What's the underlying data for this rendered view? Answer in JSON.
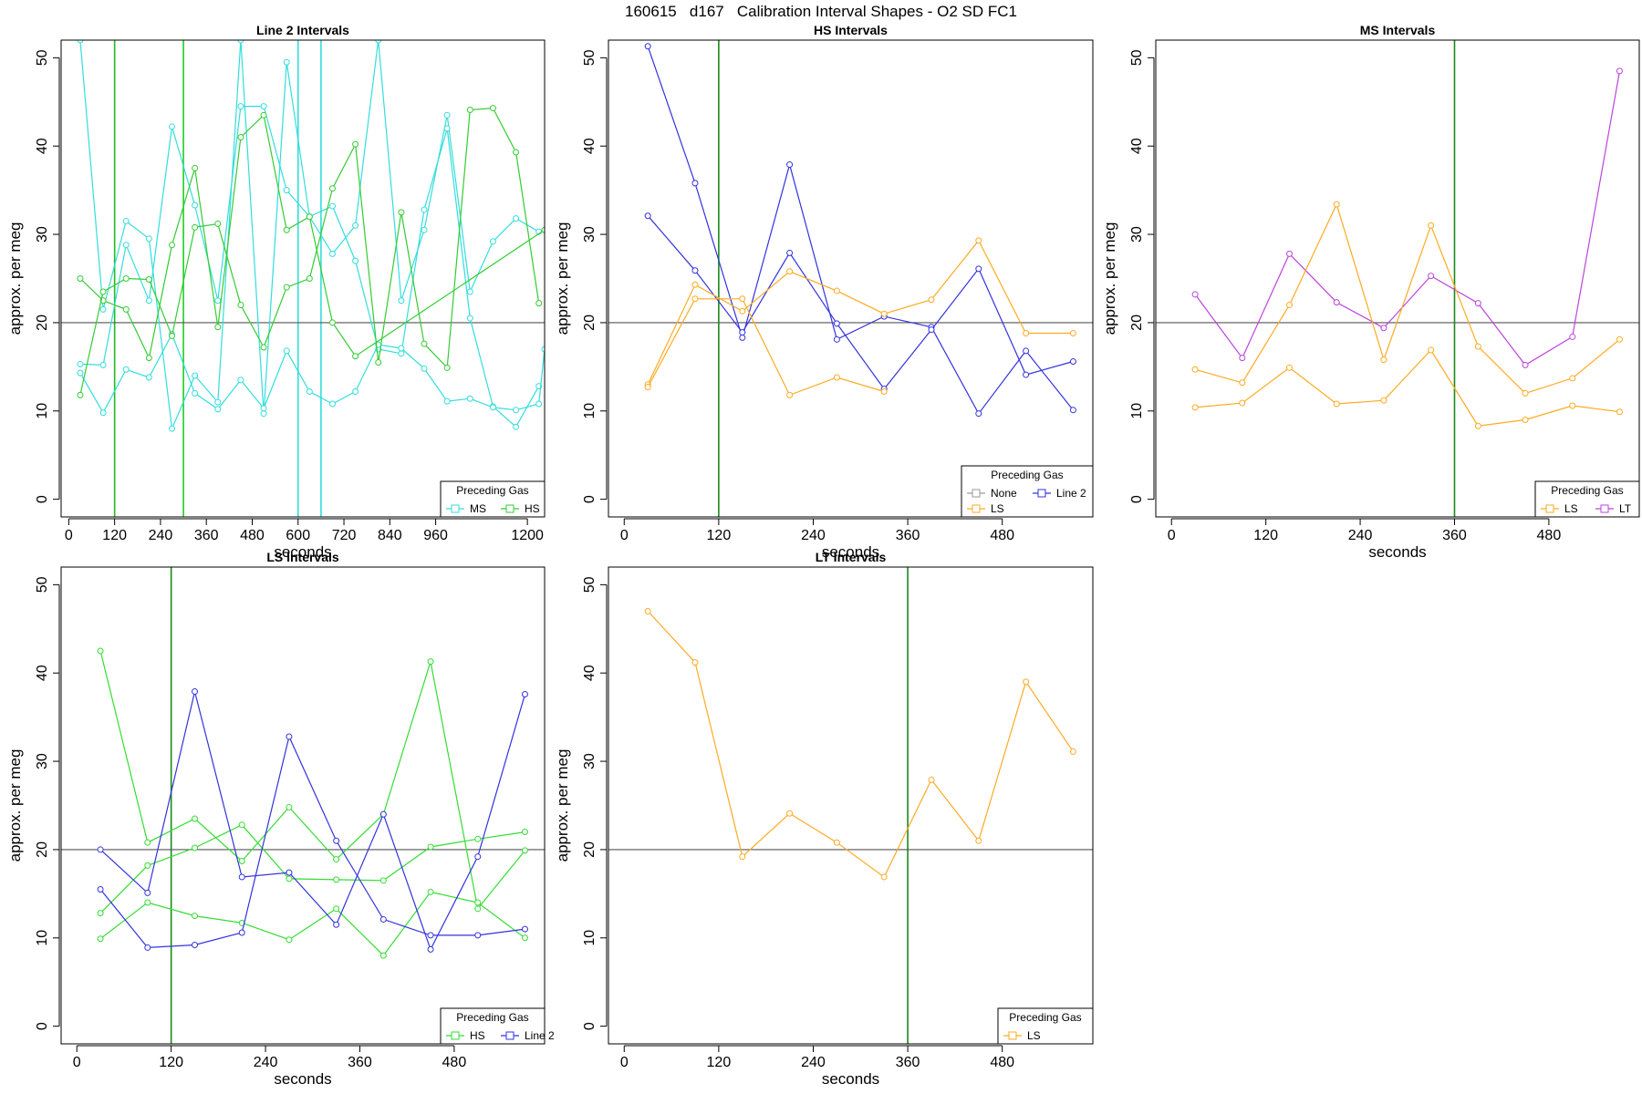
{
  "title": "160615   d167   Calibration Interval Shapes - O2 SD FC1",
  "chart_data": [
    {
      "type": "line",
      "title": "Line 2 Intervals",
      "xlabel": "seconds",
      "ylabel": "approx. per meg",
      "xlim": [
        -20,
        1245
      ],
      "ylim": [
        -2,
        52
      ],
      "xticks": [
        0,
        120,
        240,
        360,
        480,
        600,
        720,
        840,
        960,
        1200
      ],
      "yticks": [
        0,
        10,
        20,
        30,
        40,
        50
      ],
      "hline": 20,
      "vlines": [
        {
          "x": 120,
          "color": "#22bb22"
        },
        {
          "x": 300,
          "color": "#22cc22"
        },
        {
          "x": 600,
          "color": "#33dddd"
        },
        {
          "x": 660,
          "color": "#33dddd"
        }
      ],
      "legend": {
        "title": "Preceding Gas",
        "placement": "bottom-right",
        "entries": [
          {
            "label": "MS",
            "color": "#33dddd"
          },
          {
            "label": "HS",
            "color": "#33cc33"
          }
        ]
      },
      "series": [
        {
          "color": "#33dddd",
          "x": [
            30,
            90,
            150,
            210,
            270,
            330,
            390,
            450,
            510,
            570,
            630,
            690,
            750,
            810,
            870,
            930,
            990,
            1050,
            1110,
            1170,
            1230
          ],
          "y": [
            52,
            21.5,
            31.5,
            29.5,
            8,
            14,
            11,
            52,
            9.7,
            49.5,
            32,
            27.8,
            31,
            52,
            22.5,
            30.5,
            43.5,
            23.5,
            29.2,
            31.8,
            30.3
          ]
        },
        {
          "color": "#33dddd",
          "x": [
            30,
            90,
            150,
            210,
            270,
            330,
            390,
            450,
            510,
            570,
            630,
            690,
            750,
            810,
            870,
            930,
            990,
            1050,
            1110,
            1170,
            1230
          ],
          "y": [
            15.3,
            15.2,
            28.8,
            22.5,
            42.2,
            33.3,
            22.5,
            44.5,
            44.5,
            35,
            32,
            33.2,
            27,
            17,
            16.5,
            32.8,
            42,
            20.5,
            10.5,
            8.2,
            12.8
          ]
        },
        {
          "color": "#33dddd",
          "x": [
            30,
            90,
            150,
            210,
            270,
            330,
            390,
            450,
            510,
            570,
            630,
            690,
            750,
            810,
            870,
            930,
            990,
            1050,
            1110,
            1170,
            1230,
            1245
          ],
          "y": [
            14.3,
            9.8,
            14.7,
            13.8,
            18.7,
            12,
            10.2,
            13.5,
            10.3,
            16.8,
            12.2,
            10.8,
            12.2,
            17.5,
            17.1,
            14.8,
            11.1,
            11.4,
            10.4,
            10.1,
            10.8,
            17
          ]
        },
        {
          "color": "#33cc33",
          "x": [
            30,
            90,
            150,
            210,
            270,
            330,
            390,
            450,
            510,
            570,
            630,
            690,
            750,
            1245
          ],
          "y": [
            25,
            22.5,
            21.5,
            16,
            28.8,
            37.5,
            19.5,
            41,
            43.5,
            30.5,
            32,
            20,
            16.2,
            30.5
          ]
        },
        {
          "color": "#33cc33",
          "x": [
            30,
            90,
            150,
            210,
            270,
            330,
            390,
            450,
            510,
            570,
            630,
            690,
            750,
            810,
            870,
            930,
            990,
            1050,
            1110,
            1170,
            1230
          ],
          "y": [
            11.8,
            23.5,
            25,
            24.9,
            18.5,
            30.8,
            31.2,
            22,
            17.2,
            24,
            25,
            35.2,
            40.2,
            15.5,
            32.5,
            17.6,
            14.9,
            44.1,
            44.3,
            39.3,
            22.2
          ]
        }
      ]
    },
    {
      "type": "line",
      "title": "HS Intervals",
      "xlabel": "seconds",
      "ylabel": "approx. per meg",
      "xlim": [
        -20,
        595
      ],
      "ylim": [
        -2,
        52
      ],
      "xticks": [
        0,
        120,
        240,
        360,
        480
      ],
      "yticks": [
        0,
        10,
        20,
        30,
        40,
        50
      ],
      "hline": 20,
      "vlines": [
        {
          "x": 120,
          "color": "#1a8a1a"
        }
      ],
      "legend": {
        "title": "Preceding Gas",
        "placement": "bottom-right",
        "entries": [
          {
            "label": "None",
            "color": "#999999"
          },
          {
            "label": "Line 2",
            "color": "#3333dd"
          },
          {
            "label": "LS",
            "color": "#ffaa22"
          }
        ]
      },
      "series": [
        {
          "color": "#3333dd",
          "x": [
            30,
            90,
            150,
            210,
            270,
            330,
            390,
            450,
            510,
            570
          ],
          "y": [
            51.3,
            35.8,
            18.3,
            37.9,
            18.1,
            20.7,
            19.5,
            9.7,
            16.8,
            10.1
          ]
        },
        {
          "color": "#3333dd",
          "x": [
            30,
            90,
            150,
            210,
            270,
            330,
            390,
            450,
            510,
            570
          ],
          "y": [
            32.1,
            25.9,
            18.9,
            27.9,
            19.9,
            12.5,
            19.2,
            26.1,
            14.1,
            15.6
          ]
        },
        {
          "color": "#ffaa22",
          "x": [
            30,
            90,
            150,
            210,
            270,
            330,
            390,
            450,
            510,
            570
          ],
          "y": [
            13,
            24.3,
            21.3,
            25.8,
            23.6,
            21,
            22.6,
            29.3,
            18.8,
            18.8
          ]
        },
        {
          "color": "#ffaa22",
          "x": [
            30,
            90,
            150,
            210,
            270,
            330
          ],
          "y": [
            12.7,
            22.7,
            22.7,
            11.8,
            13.8,
            12.2
          ]
        }
      ]
    },
    {
      "type": "line",
      "title": "MS Intervals",
      "xlabel": "seconds",
      "ylabel": "approx. per meg",
      "xlim": [
        -20,
        595
      ],
      "ylim": [
        -2,
        52
      ],
      "xticks": [
        0,
        120,
        240,
        360,
        480
      ],
      "yticks": [
        0,
        10,
        20,
        30,
        40,
        50
      ],
      "hline": 20,
      "vlines": [
        {
          "x": 360,
          "color": "#1a8a1a"
        }
      ],
      "legend": {
        "title": "Preceding Gas",
        "placement": "bottom-right",
        "entries": [
          {
            "label": "LS",
            "color": "#ffaa22"
          },
          {
            "label": "LT",
            "color": "#bb44dd"
          }
        ]
      },
      "series": [
        {
          "color": "#bb44dd",
          "x": [
            30,
            90,
            150,
            210,
            270,
            330,
            390,
            450,
            510,
            570
          ],
          "y": [
            23.2,
            16,
            27.8,
            22.3,
            19.4,
            25.3,
            22.2,
            15.2,
            18.4,
            48.5
          ]
        },
        {
          "color": "#ffaa22",
          "x": [
            30,
            90,
            150,
            210,
            270,
            330,
            390,
            450,
            510,
            570
          ],
          "y": [
            14.7,
            13.2,
            22,
            33.4,
            15.8,
            31,
            17.3,
            12,
            13.7,
            18.1
          ]
        },
        {
          "color": "#ffaa22",
          "x": [
            30,
            90,
            150,
            210,
            270,
            330,
            390,
            450,
            510,
            570
          ],
          "y": [
            10.4,
            10.9,
            14.9,
            10.8,
            11.2,
            16.9,
            8.3,
            9,
            10.6,
            9.9
          ]
        }
      ]
    },
    {
      "type": "line",
      "title": "LS Intervals",
      "xlabel": "seconds",
      "ylabel": "approx. per meg",
      "xlim": [
        -20,
        595
      ],
      "ylim": [
        -2,
        52
      ],
      "xticks": [
        0,
        120,
        240,
        360,
        480
      ],
      "yticks": [
        0,
        10,
        20,
        30,
        40,
        50
      ],
      "hline": 20,
      "vlines": [
        {
          "x": 120,
          "color": "#1a8a1a"
        }
      ],
      "legend": {
        "title": "Preceding Gas",
        "placement": "bottom-right",
        "entries": [
          {
            "label": "HS",
            "color": "#33dd33"
          },
          {
            "label": "Line 2",
            "color": "#3333dd"
          }
        ]
      },
      "series": [
        {
          "color": "#33dd33",
          "x": [
            30,
            90,
            150,
            210,
            270,
            330,
            390,
            450,
            510,
            570
          ],
          "y": [
            42.5,
            20.8,
            23.5,
            18.7,
            24.8,
            18.9,
            24,
            41.3,
            13.3,
            19.9
          ]
        },
        {
          "color": "#33dd33",
          "x": [
            30,
            90,
            150,
            210,
            270,
            330,
            390,
            450,
            510,
            570
          ],
          "y": [
            12.8,
            18.2,
            20.2,
            22.8,
            16.7,
            16.6,
            16.5,
            20.3,
            21.2,
            22
          ]
        },
        {
          "color": "#33dd33",
          "x": [
            30,
            90,
            150,
            210,
            270,
            330,
            390,
            450,
            510,
            570
          ],
          "y": [
            9.9,
            14,
            12.5,
            11.7,
            9.8,
            13.3,
            8,
            15.2,
            14,
            10
          ]
        },
        {
          "color": "#3333dd",
          "x": [
            30,
            90,
            150,
            210,
            270,
            330,
            390,
            450,
            510,
            570
          ],
          "y": [
            20,
            15.1,
            37.9,
            16.9,
            17.4,
            11.5,
            24,
            8.7,
            19.2,
            37.6
          ]
        },
        {
          "color": "#3333dd",
          "x": [
            30,
            90,
            150,
            210,
            270,
            330,
            390,
            450,
            510,
            570
          ],
          "y": [
            15.5,
            8.9,
            9.2,
            10.6,
            32.8,
            21,
            12.1,
            10.3,
            10.3,
            11
          ]
        }
      ]
    },
    {
      "type": "line",
      "title": "LT Intervals",
      "xlabel": "seconds",
      "ylabel": "approx. per meg",
      "xlim": [
        -20,
        595
      ],
      "ylim": [
        -2,
        52
      ],
      "xticks": [
        0,
        120,
        240,
        360,
        480
      ],
      "yticks": [
        0,
        10,
        20,
        30,
        40,
        50
      ],
      "hline": 20,
      "vlines": [
        {
          "x": 360,
          "color": "#1a8a1a"
        }
      ],
      "legend": {
        "title": "Preceding Gas",
        "placement": "bottom-right",
        "entries": [
          {
            "label": "LS",
            "color": "#ffaa22"
          }
        ]
      },
      "series": [
        {
          "color": "#ffaa22",
          "x": [
            30,
            90,
            150,
            210,
            270,
            330,
            390,
            450,
            510,
            570
          ],
          "y": [
            47,
            41.2,
            19.2,
            24.1,
            20.8,
            16.9,
            27.9,
            21,
            39,
            31.1
          ]
        }
      ]
    }
  ]
}
